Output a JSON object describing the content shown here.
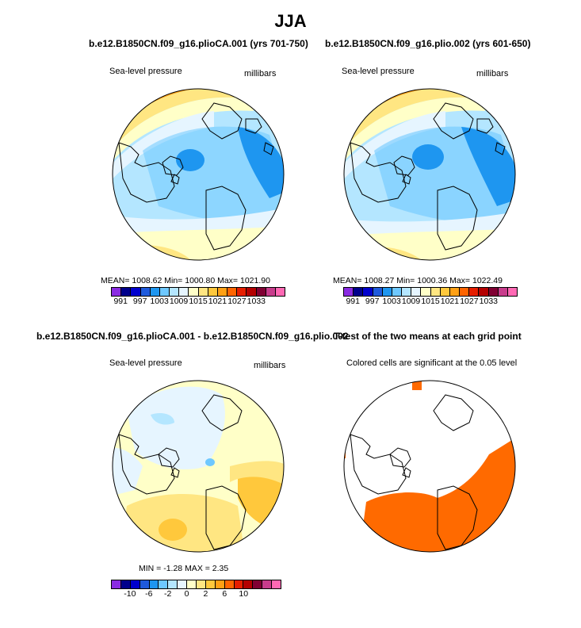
{
  "page_title": "JJA",
  "chart_data": [
    {
      "type": "heatmap",
      "title": "b.e12.B1850CN.f09_g16.plioCA.001 (yrs 701-750)",
      "left_label": "Sea-level pressure",
      "right_label": "millibars",
      "stats": {
        "mean": "1008.62",
        "min": "1000.80",
        "max": "1021.90"
      },
      "stats_text": "MEAN= 1008.62   Min= 1000.80   Max= 1021.90",
      "colorbar_levels": [
        "991",
        "997",
        "1003",
        "1009",
        "1015",
        "1021",
        "1027",
        "1033"
      ]
    },
    {
      "type": "heatmap",
      "title": "b.e12.B1850CN.f09_g16.plio.002 (yrs 601-650)",
      "left_label": "Sea-level pressure",
      "right_label": "millibars",
      "stats": {
        "mean": "1008.27",
        "min": "1000.36",
        "max": "1022.49"
      },
      "stats_text": "MEAN= 1008.27   Min= 1000.36   Max= 1022.49",
      "colorbar_levels": [
        "991",
        "997",
        "1003",
        "1009",
        "1015",
        "1021",
        "1027",
        "1033"
      ]
    },
    {
      "type": "heatmap",
      "title": "b.e12.B1850CN.f09_g16.plioCA.001 - b.e12.B1850CN.f09_g16.plio.002",
      "left_label": "Sea-level pressure",
      "right_label": "millibars",
      "stats": {
        "min": "-1.28",
        "max": "2.35"
      },
      "stats_text": "MIN =   -1.28  MAX =    2.35",
      "colorbar_levels": [
        "-10",
        "-6",
        "-2",
        "0",
        "2",
        "6",
        "10"
      ]
    },
    {
      "type": "heatmap",
      "title": "T-test of the two means at each grid point",
      "left_label": "Colored cells are significant at the 0.05 level"
    }
  ],
  "colors": {
    "abs_palette": [
      "#8a2be2",
      "#00008b",
      "#0000cd",
      "#1e5adc",
      "#1e96f0",
      "#6ec8ff",
      "#b4e6ff",
      "#e6f5ff",
      "#ffffc8",
      "#ffe682",
      "#ffc83c",
      "#ffa014",
      "#ff6400",
      "#e61e00",
      "#b40000",
      "#800033",
      "#c83c8c",
      "#ff69b4"
    ],
    "diff_palette": [
      "#8a2be2",
      "#00008b",
      "#0000cd",
      "#1e5adc",
      "#1e96f0",
      "#6ec8ff",
      "#b4e6ff",
      "#e6f5ff",
      "#ffffc8",
      "#ffe682",
      "#ffc83c",
      "#ffa014",
      "#ff6400",
      "#e61e00",
      "#b40000",
      "#800033",
      "#c83c8c",
      "#ff69b4"
    ],
    "significant": "#ff6a00"
  }
}
